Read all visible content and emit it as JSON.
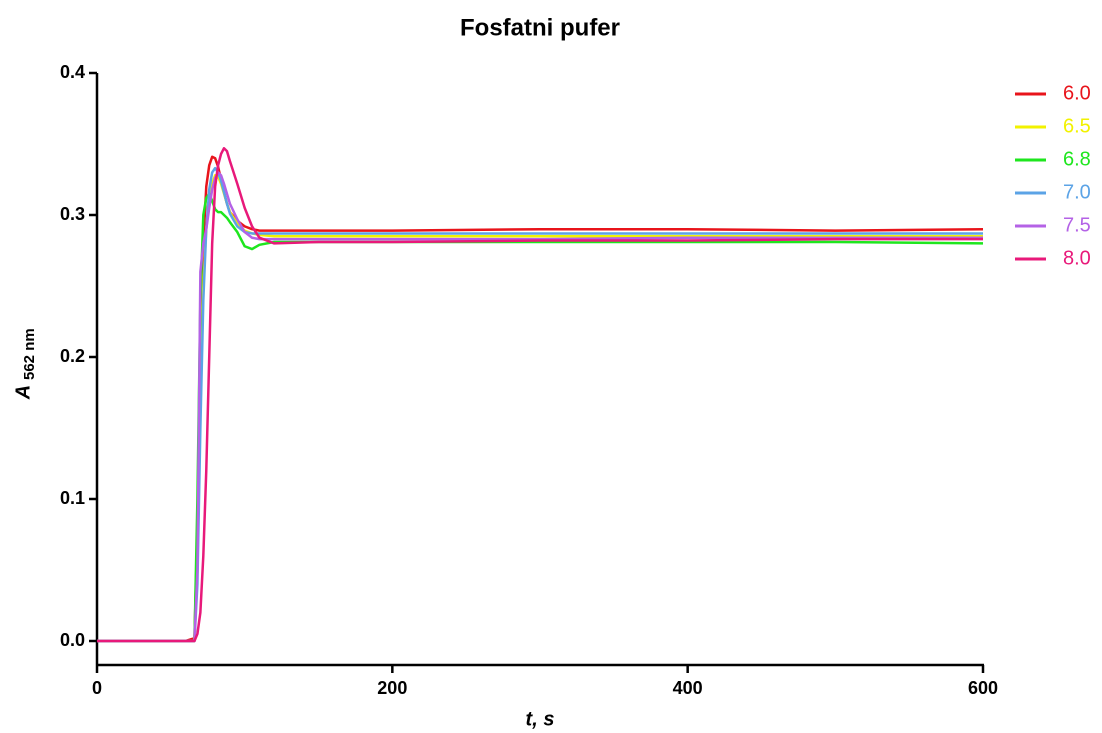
{
  "chart_data": {
    "type": "line",
    "title": "Fosfatni pufer",
    "xlabel": "t, s",
    "ylabel": "A",
    "ylabel_subscript": "562 nm",
    "x": [
      0,
      60,
      66,
      68,
      70,
      72,
      74,
      76,
      78,
      80,
      82,
      84,
      86,
      88,
      90,
      95,
      100,
      105,
      110,
      120,
      150,
      200,
      300,
      400,
      500,
      600
    ],
    "series": [
      {
        "name": "6.0",
        "color": "#e8141b",
        "values": [
          0,
          0,
          0.002,
          0.08,
          0.2,
          0.28,
          0.32,
          0.335,
          0.341,
          0.34,
          0.334,
          0.325,
          0.316,
          0.308,
          0.302,
          0.296,
          0.292,
          0.29,
          0.289,
          0.289,
          0.289,
          0.289,
          0.29,
          0.29,
          0.289,
          0.29
        ]
      },
      {
        "name": "6.5",
        "color": "#f2f200",
        "values": [
          0,
          0,
          0,
          0.05,
          0.17,
          0.25,
          0.29,
          0.31,
          0.322,
          0.328,
          0.327,
          0.322,
          0.315,
          0.308,
          0.302,
          0.294,
          0.289,
          0.287,
          0.286,
          0.285,
          0.285,
          0.285,
          0.285,
          0.285,
          0.285,
          0.285
        ]
      },
      {
        "name": "6.8",
        "color": "#1ee61e",
        "values": [
          0,
          0,
          0,
          0.1,
          0.24,
          0.3,
          0.312,
          0.315,
          0.31,
          0.304,
          0.302,
          0.302,
          0.3,
          0.298,
          0.295,
          0.288,
          0.278,
          0.276,
          0.279,
          0.281,
          0.281,
          0.281,
          0.281,
          0.281,
          0.281,
          0.28
        ]
      },
      {
        "name": "7.0",
        "color": "#5ba3e6",
        "values": [
          0,
          0,
          0,
          0.04,
          0.15,
          0.24,
          0.29,
          0.318,
          0.33,
          0.333,
          0.33,
          0.324,
          0.316,
          0.308,
          0.301,
          0.292,
          0.288,
          0.287,
          0.287,
          0.287,
          0.287,
          0.287,
          0.287,
          0.287,
          0.287,
          0.287
        ]
      },
      {
        "name": "7.5",
        "color": "#b462e6",
        "values": [
          0,
          0,
          0,
          0.05,
          0.26,
          0.28,
          0.29,
          0.305,
          0.318,
          0.326,
          0.33,
          0.328,
          0.322,
          0.315,
          0.308,
          0.297,
          0.288,
          0.284,
          0.283,
          0.283,
          0.283,
          0.283,
          0.283,
          0.284,
          0.284,
          0.284
        ]
      },
      {
        "name": "8.0",
        "color": "#e8197a",
        "values": [
          0,
          0,
          0,
          0.005,
          0.02,
          0.06,
          0.12,
          0.2,
          0.28,
          0.32,
          0.335,
          0.343,
          0.347,
          0.345,
          0.338,
          0.322,
          0.305,
          0.292,
          0.284,
          0.28,
          0.281,
          0.281,
          0.282,
          0.282,
          0.283,
          0.283
        ]
      }
    ],
    "xlim": [
      0,
      600
    ],
    "xticks": [
      0,
      200,
      400,
      600
    ],
    "ylim": [
      0,
      0.4
    ],
    "yticks": [
      {
        "value": 0,
        "label": "0.0"
      },
      0.1,
      0.2,
      0.3,
      0.4
    ],
    "legend": "right"
  }
}
